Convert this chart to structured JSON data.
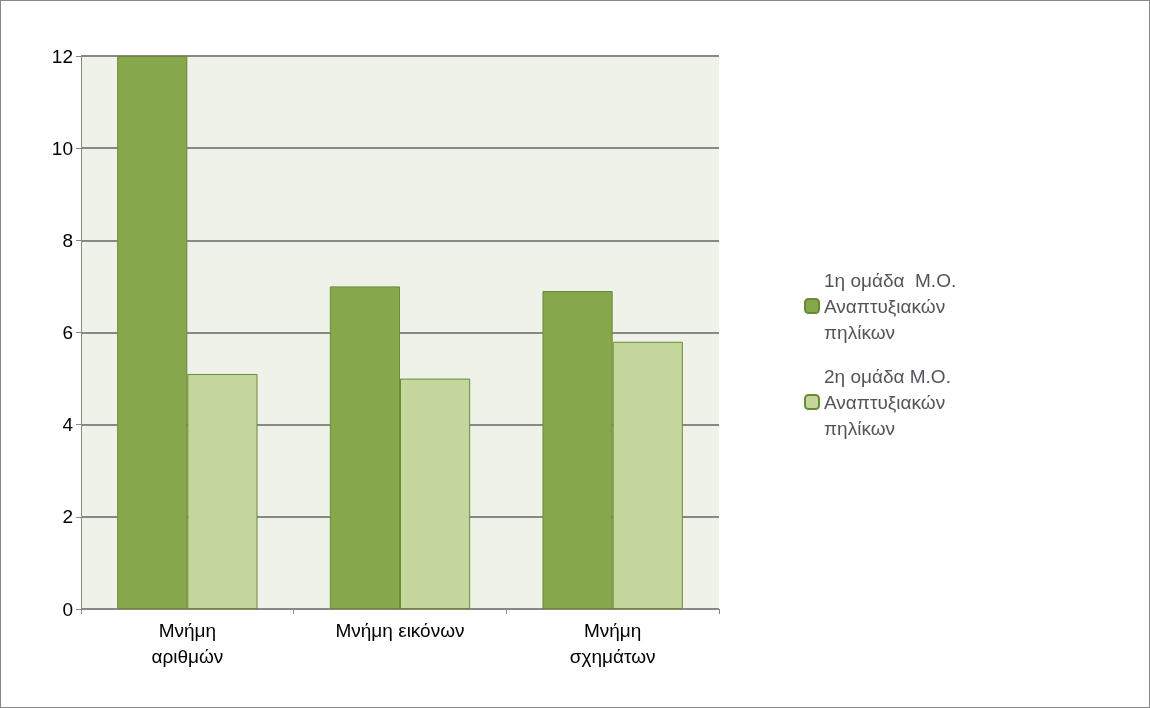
{
  "chart_data": {
    "type": "bar",
    "categories": [
      "Μνήμη\nαριθμών",
      "Μνήμη εικόνων",
      "Μνήμη\nσχημάτων"
    ],
    "series": [
      {
        "name": "1η ομάδα  Μ.Ο. Αναπτυξιακών πηλίκων",
        "color": "#86a84a",
        "values": [
          12,
          7.0,
          6.9
        ]
      },
      {
        "name": "2η ομάδα Μ.Ο. Αναπτυξιακών πηλίκων",
        "color": "#c3d69b",
        "values": [
          5.1,
          5.0,
          5.8
        ]
      }
    ],
    "ylim": [
      0,
      12
    ],
    "yticks": [
      0,
      2,
      4,
      6,
      8,
      10,
      12
    ],
    "grid": "y",
    "legend": "right"
  }
}
